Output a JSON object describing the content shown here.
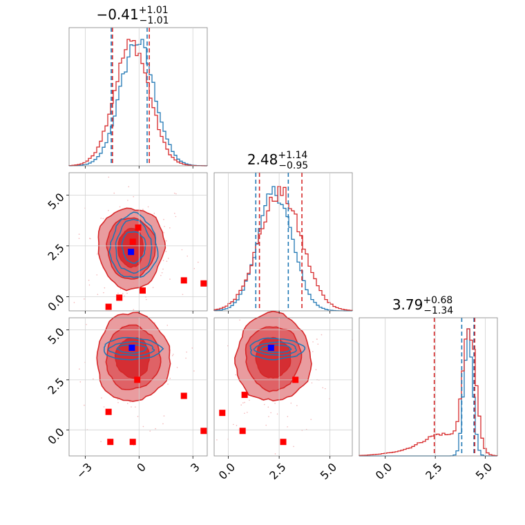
{
  "chart_data": {
    "type": "corner",
    "grid": true,
    "colors": {
      "blue": "#1f77b4",
      "red": "#d62728",
      "marker_red": "#ff0000",
      "marker_blue": "#0000ff"
    },
    "parameters": [
      {
        "title": {
          "median": "−0.41",
          "plus": "+1.01",
          "minus": "−1.01"
        },
        "range": [
          -3.9,
          3.8
        ]
      },
      {
        "title": {
          "median": "2.48",
          "plus": "+1.14",
          "minus": "−0.95"
        },
        "range": [
          -0.7,
          6.1
        ]
      },
      {
        "title": {
          "median": "3.79",
          "plus": "+0.68",
          "minus": "−1.34"
        },
        "range": [
          -1.3,
          5.6
        ]
      }
    ],
    "tick_values": [
      [
        -3,
        0,
        3
      ],
      [
        0.0,
        2.5,
        5.0
      ],
      [
        0.0,
        2.5,
        5.0
      ]
    ],
    "tick_labels": [
      [
        "−3",
        "0",
        "3"
      ],
      [
        "0.0",
        "2.5",
        "5.0"
      ],
      [
        "0.0",
        "2.5",
        "5.0"
      ]
    ],
    "quantile_lines": {
      "blue": [
        [
          -1.55,
          0.45
        ],
        [
          1.35,
          2.95
        ],
        [
          3.82,
          4.43
        ]
      ],
      "red": [
        [
          -1.48,
          0.57
        ],
        [
          1.53,
          3.62
        ],
        [
          2.45,
          4.47
        ]
      ]
    },
    "marginal_hist": {
      "blue": [
        {
          "center": -0.1,
          "sigma": 0.95,
          "tail": 0
        },
        {
          "center": 2.3,
          "sigma": 0.85,
          "tail": 0
        },
        {
          "center": 4.15,
          "sigma": 0.22,
          "tail": 0
        }
      ],
      "red": [
        {
          "center": -0.4,
          "sigma": 0.98,
          "tail": 0
        },
        {
          "center": 2.55,
          "sigma": 1.05,
          "tail": 0
        },
        {
          "center": 4.2,
          "sigma": 0.32,
          "tail": 1
        }
      ]
    },
    "contours": [
      {
        "pair": [
          0,
          1
        ],
        "red_center": [
          -0.45,
          2.4
        ],
        "red_radii": [
          [
            0.7,
            0.95
          ],
          [
            1.35,
            1.5
          ],
          [
            1.85,
            2.0
          ]
        ],
        "blue_center": [
          -0.3,
          2.45
        ],
        "blue_radii": [
          [
            1.05,
            0.85
          ],
          [
            1.6,
            1.45
          ],
          [
            2.1,
            1.75
          ]
        ]
      },
      {
        "pair": [
          0,
          2
        ],
        "red_center": [
          -0.35,
          3.6
        ],
        "red_radii": [
          [
            0.95,
            1.0
          ],
          [
            1.5,
            1.6
          ],
          [
            2.05,
            2.2
          ]
        ],
        "blue_center": [
          -0.4,
          4.05
        ],
        "blue_radii": [
          [
            1.3,
            0.22
          ],
          [
            2.0,
            0.38
          ],
          [
            2.6,
            0.6
          ]
        ]
      },
      {
        "pair": [
          1,
          2
        ],
        "red_center": [
          2.2,
          3.6
        ],
        "red_radii": [
          [
            0.85,
            1.0
          ],
          [
            1.35,
            1.6
          ],
          [
            1.85,
            2.2
          ]
        ],
        "blue_center": [
          2.35,
          4.05
        ],
        "blue_radii": [
          [
            1.2,
            0.2
          ],
          [
            1.65,
            0.36
          ],
          [
            2.15,
            0.58
          ]
        ]
      }
    ],
    "markers": [
      {
        "pair": [
          0,
          1
        ],
        "blue": [
          -0.45,
          2.2
        ],
        "red": [
          [
            -0.35,
            2.7
          ],
          [
            -0.05,
            3.4
          ],
          [
            0.2,
            0.3
          ],
          [
            -1.1,
            -0.05
          ],
          [
            -1.7,
            -0.5
          ],
          [
            2.5,
            0.8
          ],
          [
            3.6,
            0.65
          ]
        ]
      },
      {
        "pair": [
          0,
          2
        ],
        "blue": [
          -0.4,
          4.1
        ],
        "red": [
          [
            -1.7,
            0.9
          ],
          [
            -1.6,
            -0.6
          ],
          [
            -0.35,
            -0.6
          ],
          [
            -0.1,
            2.5
          ],
          [
            2.5,
            1.7
          ],
          [
            3.6,
            -0.05
          ]
        ]
      },
      {
        "pair": [
          1,
          2
        ],
        "blue": [
          2.1,
          4.1
        ],
        "red": [
          [
            -0.3,
            0.85
          ],
          [
            0.8,
            1.75
          ],
          [
            0.7,
            -0.05
          ],
          [
            2.7,
            -0.6
          ],
          [
            3.3,
            2.5
          ]
        ]
      }
    ]
  }
}
